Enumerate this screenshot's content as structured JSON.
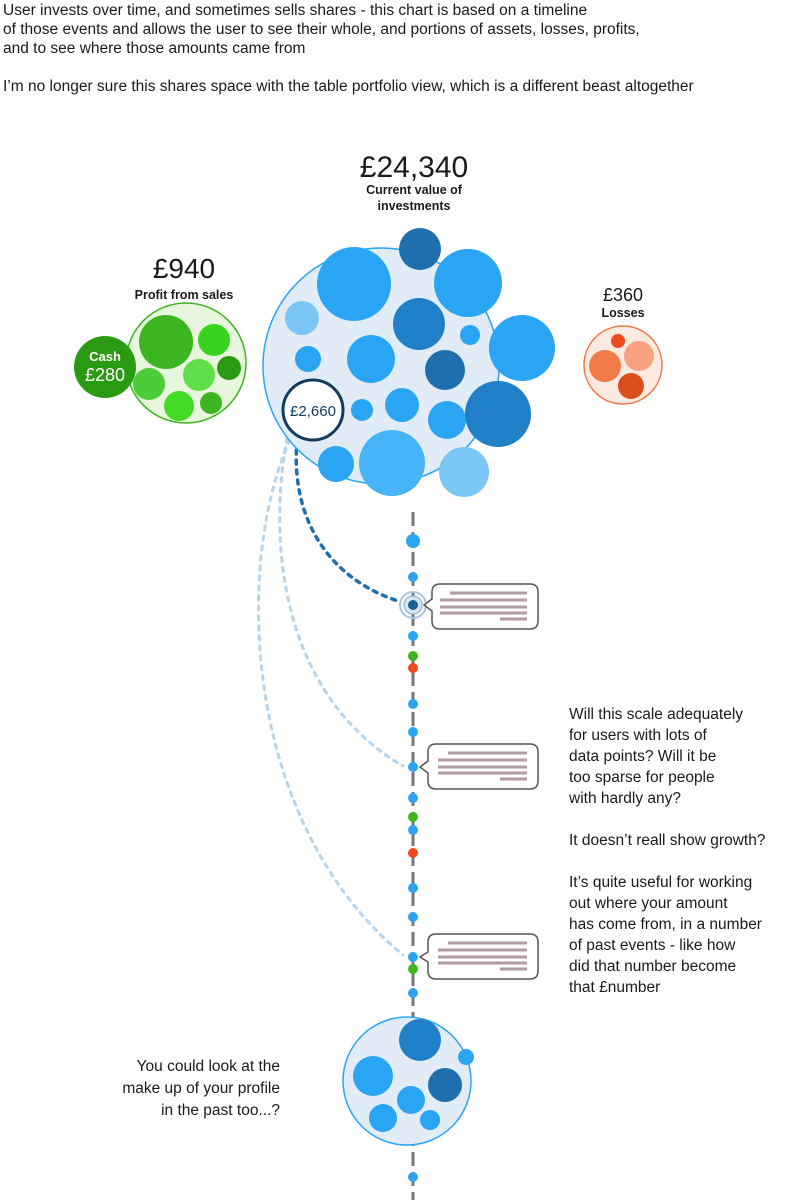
{
  "intro": {
    "line1": "User invests over time, and sometimes sells shares - this chart is based on a timeline",
    "line2": "of those events and allows the user to see their whole, and portions of assets, losses, profits,",
    "line3": "and to see where those amounts came from",
    "line4": "I’m no longer sure this shares space with the table portfolio view, which is a different beast altogether"
  },
  "current": {
    "amount": "£24,340",
    "label_line1": "Current value of",
    "label_line2": "investments"
  },
  "selected_holding": {
    "amount": "£2,660"
  },
  "profit": {
    "amount": "£940",
    "label": "Profit from sales"
  },
  "cash": {
    "label": "Cash",
    "amount": "£280"
  },
  "losses": {
    "amount": "£360",
    "label": "Losses"
  },
  "colors": {
    "blue": "#2aa5f4",
    "dark_blue": "#1f6fae",
    "light_blue": "#7cc6f6",
    "green": "#3cb521",
    "dark_green": "#2a9a12",
    "red": "#f04a23",
    "orange": "#f07a4a",
    "line_gray": "#777777",
    "bubble_fill": "#e2ecf6"
  },
  "notes": {
    "right": {
      "q1_l1": "Will this scale adequately",
      "q1_l2": "for users with lots of",
      "q1_l3": "data points? Will it be",
      "q1_l4": "too sparse for people",
      "q1_l5": "with hardly any?",
      "q2": "It doesn’t reall show growth?",
      "q3_l1": "It’s quite useful for working",
      "q3_l2": "out where your amount",
      "q3_l3": "has come from, in a number",
      "q3_l4": "of past events - like how",
      "q3_l5": "did that number become",
      "q3_l6": "that £number"
    },
    "left": {
      "l1": "You could look at the",
      "l2": "make up of your profile",
      "l3": "in the past too...?"
    }
  }
}
